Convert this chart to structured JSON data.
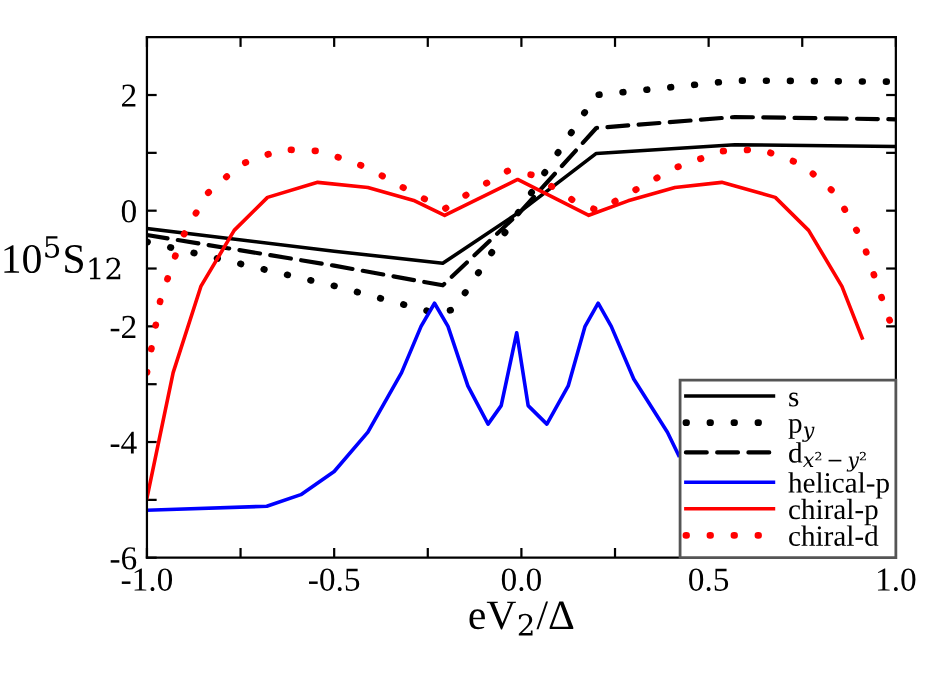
{
  "chart_data": {
    "type": "line",
    "xlabel": "eV$_{2}$/Δ",
    "ylabel": "10$^{5}$S$_{12}$",
    "xlim": [
      -1.0,
      1.0
    ],
    "ylim": [
      -6,
      3
    ],
    "xticks": [
      {
        "value": -1.0,
        "label": "-1.0"
      },
      {
        "value": -0.75,
        "label": null
      },
      {
        "value": -0.5,
        "label": "-0.5"
      },
      {
        "value": -0.25,
        "label": null
      },
      {
        "value": 0.0,
        "label": "0.0"
      },
      {
        "value": 0.25,
        "label": null
      },
      {
        "value": 0.5,
        "label": "0.5"
      },
      {
        "value": 0.75,
        "label": null
      },
      {
        "value": 1.0,
        "label": "1.0"
      }
    ],
    "yticks": [
      {
        "value": -6,
        "label": "-6"
      },
      {
        "value": -5,
        "label": null
      },
      {
        "value": -4,
        "label": "-4"
      },
      {
        "value": -3,
        "label": null
      },
      {
        "value": -2,
        "label": "-2"
      },
      {
        "value": -1,
        "label": null
      },
      {
        "value": 0,
        "label": "0"
      },
      {
        "value": 1,
        "label": null
      },
      {
        "value": 2,
        "label": "2"
      }
    ],
    "grid": false,
    "legend": "bottom right",
    "series": [
      {
        "name": "s",
        "color": "#000000",
        "line_style": "solid",
        "x": [
          -1.0,
          -0.5,
          -0.21,
          0.0,
          0.2,
          0.57,
          1.0
        ],
        "values": [
          -0.31,
          -0.7,
          -0.91,
          0.0,
          0.99,
          1.14,
          1.11
        ]
      },
      {
        "name": "p$_{y}$",
        "color": "#000000",
        "line_style": "dotted",
        "x": [
          -1.0,
          -0.5,
          -0.23,
          -0.18,
          0.0,
          0.2,
          0.57,
          1.0
        ],
        "values": [
          -0.54,
          -1.3,
          -1.77,
          -1.71,
          0.05,
          2.0,
          2.25,
          2.23
        ]
      },
      {
        "name": "d$_{x²−y²}$",
        "color": "#000000",
        "line_style": "dashed",
        "x": [
          -1.0,
          -0.5,
          -0.21,
          0.0,
          0.2,
          0.57,
          1.0
        ],
        "values": [
          -0.42,
          -0.95,
          -1.29,
          0.0,
          1.43,
          1.62,
          1.58
        ]
      },
      {
        "name": "helical-p",
        "color": "#0000ff",
        "line_style": "solid",
        "x": [
          -1.0,
          -0.68,
          -0.589,
          -0.5,
          -0.41,
          -0.32,
          -0.268,
          -0.232,
          -0.196,
          -0.143,
          -0.089,
          -0.054,
          -0.0125,
          0.018,
          0.068,
          0.125,
          0.17,
          0.205,
          0.24,
          0.3,
          0.39,
          0.42
        ],
        "values": [
          -5.18,
          -5.11,
          -4.91,
          -4.51,
          -3.83,
          -2.8,
          -2.0,
          -1.6,
          -2.0,
          -3.03,
          -3.69,
          -3.37,
          -2.11,
          -3.37,
          -3.69,
          -3.03,
          -2.0,
          -1.6,
          -2.0,
          -2.91,
          -3.83,
          -4.23
        ]
      },
      {
        "name": "chiral-p",
        "color": "#ff0000",
        "line_style": "solid",
        "x": [
          -1.0,
          -0.93,
          -0.856,
          -0.767,
          -0.678,
          -0.544,
          -0.41,
          -0.285,
          -0.205,
          -0.01,
          0.18,
          0.285,
          0.41,
          0.535,
          0.678,
          0.767,
          0.856,
          0.91
        ],
        "values": [
          -4.97,
          -2.8,
          -1.31,
          -0.34,
          0.23,
          0.49,
          0.4,
          0.17,
          -0.08,
          0.54,
          -0.08,
          0.17,
          0.4,
          0.49,
          0.23,
          -0.34,
          -1.31,
          -2.2
        ]
      },
      {
        "name": "chiral-d",
        "color": "#ff0000",
        "line_style": "dotted",
        "x": [
          -1.0,
          -0.964,
          -0.91,
          -0.84,
          -0.75,
          -0.64,
          -0.535,
          -0.41,
          -0.285,
          -0.205,
          -0.143,
          -0.036,
          0.036,
          0.14,
          0.205,
          0.285,
          0.41,
          0.535,
          0.64,
          0.75,
          0.84,
          0.91,
          0.964,
          1.0
        ],
        "values": [
          -2.8,
          -1.54,
          -0.51,
          0.29,
          0.8,
          1.06,
          1.03,
          0.74,
          0.29,
          0.03,
          0.29,
          0.69,
          0.61,
          0.17,
          0.0,
          0.29,
          0.74,
          1.03,
          1.06,
          0.8,
          0.29,
          -0.51,
          -1.54,
          -2.2
        ]
      }
    ]
  }
}
